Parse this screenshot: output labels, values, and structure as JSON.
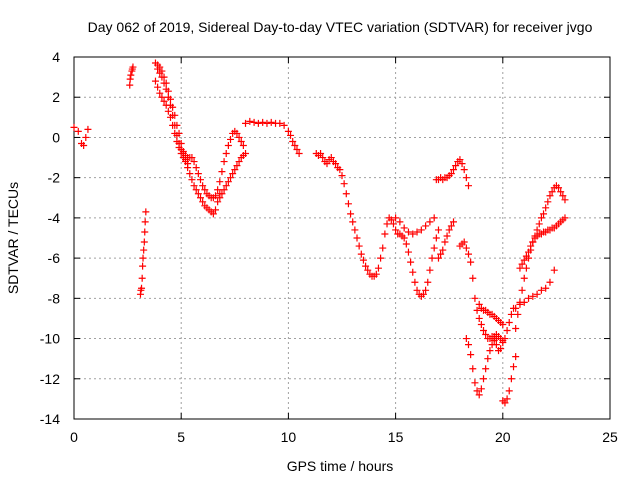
{
  "chart_data": {
    "type": "scatter",
    "title": "Day 062 of 2019, Sidereal Day-to-day VTEC variation (SDTVAR) for receiver jvgo",
    "xlabel": "GPS time / hours",
    "ylabel": "SDTVAR / TECUs",
    "xlim": [
      0,
      25
    ],
    "ylim": [
      -14,
      4
    ],
    "x_ticks": [
      0,
      5,
      10,
      15,
      20,
      25
    ],
    "y_ticks": [
      -14,
      -12,
      -10,
      -8,
      -6,
      -4,
      -2,
      0,
      2,
      4
    ],
    "x_tick_labels": [
      "0",
      "5",
      "10",
      "15",
      "20",
      "25"
    ],
    "y_tick_labels": [
      "-14",
      "-12",
      "-10",
      "-8",
      "-6",
      "-4",
      "-2",
      "0",
      "2",
      "4"
    ],
    "grid": true,
    "marker": "+",
    "color": "#ff0000",
    "series": [
      {
        "x": [
          0.0,
          0.2,
          0.35,
          0.45,
          0.55,
          0.65
        ],
        "y": [
          0.5,
          0.3,
          -0.3,
          -0.4,
          0.0,
          0.4
        ]
      },
      {
        "x": [
          2.6,
          2.62,
          2.65,
          2.7,
          2.72,
          2.75
        ],
        "y": [
          2.6,
          2.9,
          3.1,
          3.3,
          3.4,
          3.5
        ]
      },
      {
        "x": [
          3.1,
          3.12,
          3.15,
          3.18,
          3.2,
          3.22,
          3.25,
          3.28,
          3.3,
          3.32,
          3.35
        ],
        "y": [
          -7.8,
          -7.6,
          -7.5,
          -7.0,
          -6.4,
          -6.0,
          -5.6,
          -5.2,
          -4.7,
          -4.2,
          -3.7
        ]
      },
      {
        "x": [
          3.8,
          3.9,
          4.0,
          4.1,
          4.2,
          4.3,
          4.4,
          4.5,
          4.6,
          4.7,
          4.8,
          4.9,
          5.0,
          5.1,
          5.2,
          5.3,
          5.4,
          5.5,
          5.6,
          5.7,
          5.8,
          5.9,
          6.0,
          6.1,
          6.2,
          6.3,
          6.4,
          6.5,
          6.6,
          6.7,
          6.8
        ],
        "y": [
          3.7,
          3.6,
          3.5,
          3.3,
          3.0,
          2.7,
          2.3,
          1.9,
          1.5,
          1.1,
          0.6,
          0.2,
          -0.3,
          -0.7,
          -1.1,
          -1.5,
          -1.8,
          -2.1,
          -2.4,
          -2.6,
          -2.8,
          -3.0,
          -3.2,
          -3.4,
          -3.5,
          -3.6,
          -3.7,
          -3.8,
          -3.6,
          -3.2,
          -2.8
        ]
      },
      {
        "x": [
          3.9,
          4.0,
          4.1,
          4.2,
          4.3,
          4.4,
          4.5,
          4.6,
          4.7,
          4.8,
          4.9,
          5.0,
          5.1,
          5.2,
          5.3,
          5.4,
          5.5,
          5.6,
          5.7,
          5.8,
          5.9,
          6.0,
          6.1,
          6.2,
          6.3,
          6.4,
          6.5,
          6.6,
          6.7,
          6.8,
          6.9,
          7.0,
          7.1,
          7.2,
          7.3,
          7.4,
          7.5,
          7.6,
          7.7,
          7.8,
          7.9
        ],
        "y": [
          3.4,
          3.2,
          3.0,
          2.7,
          2.4,
          2.0,
          1.6,
          1.1,
          0.6,
          0.1,
          -0.3,
          -0.6,
          -0.8,
          -0.9,
          -1.0,
          -1.0,
          -1.0,
          -1.2,
          -1.5,
          -1.8,
          -2.1,
          -2.4,
          -2.6,
          -2.8,
          -2.9,
          -3.0,
          -3.0,
          -2.9,
          -2.6,
          -2.2,
          -1.7,
          -1.2,
          -0.8,
          -0.4,
          -0.1,
          0.2,
          0.3,
          0.2,
          0.0,
          -0.2,
          -0.4
        ]
      },
      {
        "x": [
          3.8,
          3.9,
          4.0,
          4.1,
          4.2,
          4.3,
          4.4,
          4.5,
          4.6,
          4.7,
          4.8,
          4.9,
          5.0,
          5.1,
          5.2,
          5.3
        ],
        "y": [
          2.8,
          2.5,
          2.2,
          2.0,
          1.8,
          1.6,
          1.3,
          1.0,
          0.6,
          0.2,
          -0.2,
          -0.5,
          -0.8,
          -1.0,
          -1.2,
          -1.3
        ]
      },
      {
        "x": [
          6.8,
          6.9,
          7.0,
          7.1,
          7.2,
          7.3,
          7.4,
          7.5,
          7.6,
          7.7,
          7.8,
          7.9,
          8.0
        ],
        "y": [
          -3.0,
          -2.8,
          -2.6,
          -2.4,
          -2.2,
          -2.0,
          -1.8,
          -1.6,
          -1.4,
          -1.2,
          -1.0,
          -0.9,
          -0.8
        ]
      },
      {
        "x": [
          8.0,
          8.2,
          8.4,
          8.6,
          8.8,
          9.0,
          9.2,
          9.4,
          9.6,
          9.8,
          10.0,
          10.1,
          10.2,
          10.3,
          10.4,
          10.5
        ],
        "y": [
          0.7,
          0.8,
          0.75,
          0.7,
          0.75,
          0.7,
          0.75,
          0.7,
          0.7,
          0.6,
          0.3,
          0.1,
          -0.2,
          -0.4,
          -0.6,
          -0.8
        ]
      },
      {
        "x": [
          11.3,
          11.4,
          11.5,
          11.6,
          11.7,
          11.8,
          11.9,
          12.0,
          12.1,
          12.2,
          12.3,
          12.4,
          12.5,
          12.6,
          12.7,
          12.8,
          12.9,
          13.0,
          13.1,
          13.2,
          13.3,
          13.4,
          13.5,
          13.6,
          13.7,
          13.8,
          13.9,
          14.0,
          14.1,
          14.2,
          14.3,
          14.4,
          14.5,
          14.6,
          14.7,
          14.8,
          14.9,
          15.0,
          15.1,
          15.2,
          15.3,
          15.4,
          15.5,
          15.6,
          15.7,
          15.8,
          15.9,
          16.0,
          16.1,
          16.2,
          16.3,
          16.4,
          16.5,
          16.6,
          16.7,
          16.8,
          16.9,
          17.0
        ],
        "y": [
          -0.8,
          -0.9,
          -0.8,
          -1.0,
          -1.2,
          -1.3,
          -1.1,
          -1.0,
          -1.2,
          -1.3,
          -1.5,
          -1.6,
          -1.9,
          -2.3,
          -2.8,
          -3.3,
          -3.8,
          -4.2,
          -4.6,
          -5.0,
          -5.4,
          -5.8,
          -6.1,
          -6.4,
          -6.6,
          -6.8,
          -6.9,
          -6.9,
          -6.8,
          -6.5,
          -6.0,
          -5.5,
          -4.8,
          -4.3,
          -4.0,
          -4.1,
          -4.3,
          -4.6,
          -4.8,
          -4.8,
          -4.9,
          -5.0,
          -5.3,
          -5.7,
          -6.2,
          -6.7,
          -7.2,
          -7.6,
          -7.8,
          -7.9,
          -7.8,
          -7.6,
          -7.2,
          -6.6,
          -6.0,
          -5.5,
          -5.0,
          -4.6
        ]
      },
      {
        "x": [
          15.0,
          15.2,
          15.4,
          15.6,
          15.8,
          16.0,
          16.2,
          16.4,
          16.6,
          16.8
        ],
        "y": [
          -4.0,
          -4.2,
          -4.5,
          -4.7,
          -4.8,
          -4.7,
          -4.6,
          -4.4,
          -4.2,
          -4.0
        ]
      },
      {
        "x": [
          16.9,
          17.0,
          17.1,
          17.2,
          17.3,
          17.4,
          17.5,
          17.6,
          17.7,
          17.8,
          17.9,
          18.0,
          18.1,
          18.2,
          18.3,
          18.4
        ],
        "y": [
          -2.1,
          -2.1,
          -2.0,
          -2.1,
          -2.0,
          -2.0,
          -1.9,
          -1.8,
          -1.6,
          -1.4,
          -1.2,
          -1.1,
          -1.3,
          -1.6,
          -2.0,
          -2.4
        ]
      },
      {
        "x": [
          17.0,
          17.1,
          17.2,
          17.3,
          17.4,
          17.5,
          17.6,
          17.7
        ],
        "y": [
          -6.0,
          -5.8,
          -5.6,
          -5.2,
          -4.9,
          -4.6,
          -4.4,
          -4.2
        ]
      },
      {
        "x": [
          18.0,
          18.1,
          18.2,
          18.3,
          18.4,
          18.5,
          18.6,
          18.7,
          18.8,
          18.9,
          19.0,
          19.1,
          19.2,
          19.3,
          19.4,
          19.5,
          19.6,
          19.7,
          19.8,
          19.9,
          20.0
        ],
        "y": [
          -5.4,
          -5.3,
          -5.2,
          -5.5,
          -5.8,
          -6.2,
          -7.0,
          -8.0,
          -8.6,
          -9.0,
          -9.3,
          -9.6,
          -9.8,
          -10.0,
          -10.0,
          -9.9,
          -9.9,
          -9.8,
          -9.9,
          -10.0,
          -10.1
        ]
      },
      {
        "x": [
          18.3,
          18.4,
          18.5,
          18.6,
          18.7,
          18.8,
          18.9,
          19.0,
          19.1,
          19.2,
          19.3,
          19.4,
          19.5,
          19.6,
          19.7
        ],
        "y": [
          -10.0,
          -10.3,
          -10.8,
          -11.5,
          -12.2,
          -12.6,
          -12.8,
          -12.5,
          -12.0,
          -11.5,
          -11.0,
          -10.6,
          -10.3,
          -10.1,
          -10.0
        ]
      },
      {
        "x": [
          18.9,
          19.0,
          19.1,
          19.2,
          19.3,
          19.4,
          19.5,
          19.6,
          19.7,
          19.8,
          19.9,
          20.0
        ],
        "y": [
          -8.3,
          -8.5,
          -8.6,
          -8.6,
          -8.7,
          -8.8,
          -8.8,
          -8.9,
          -9.0,
          -9.1,
          -9.2,
          -9.3
        ]
      },
      {
        "x": [
          19.6,
          19.7,
          19.8,
          19.9,
          20.0,
          20.1,
          20.2,
          20.3,
          20.4,
          20.5
        ],
        "y": [
          -10.0,
          -10.3,
          -10.6,
          -10.5,
          -10.2,
          -10.0,
          -9.6,
          -9.2,
          -8.8,
          -8.5
        ]
      },
      {
        "x": [
          20.0,
          20.1,
          20.2,
          20.3,
          20.4,
          20.5,
          20.6
        ],
        "y": [
          -13.1,
          -13.2,
          -13.0,
          -12.6,
          -12.0,
          -11.4,
          -10.9
        ]
      },
      {
        "x": [
          20.6,
          20.7,
          20.8,
          20.9,
          21.0,
          21.1,
          21.2,
          21.3,
          21.4,
          21.5,
          21.6,
          21.7,
          21.8,
          21.9,
          22.0,
          22.1,
          22.2,
          22.3,
          22.4,
          22.5,
          22.6,
          22.7,
          22.8,
          22.9
        ],
        "y": [
          -9.5,
          -8.8,
          -8.2,
          -7.6,
          -7.0,
          -6.5,
          -6.0,
          -5.6,
          -5.2,
          -4.9,
          -4.6,
          -4.3,
          -4.0,
          -3.8,
          -3.5,
          -3.2,
          -2.9,
          -2.7,
          -2.5,
          -2.4,
          -2.5,
          -2.7,
          -2.9,
          -3.1
        ]
      },
      {
        "x": [
          20.8,
          20.9,
          21.0,
          21.1,
          21.2,
          21.3,
          21.4,
          21.5,
          21.6,
          21.7,
          21.8,
          21.9,
          22.0,
          22.1,
          22.2,
          22.3,
          22.4,
          22.5,
          22.6,
          22.7,
          22.8,
          22.9
        ],
        "y": [
          -6.5,
          -6.3,
          -6.1,
          -5.9,
          -5.7,
          -5.4,
          -5.2,
          -5.0,
          -4.9,
          -4.8,
          -4.8,
          -4.7,
          -4.7,
          -4.6,
          -4.6,
          -4.5,
          -4.5,
          -4.4,
          -4.3,
          -4.2,
          -4.1,
          -4.0
        ]
      },
      {
        "x": [
          20.6,
          20.8,
          21.0,
          21.2,
          21.4,
          21.6,
          21.8,
          22.0,
          22.2,
          22.4
        ],
        "y": [
          -8.5,
          -8.3,
          -8.2,
          -8.0,
          -7.9,
          -7.8,
          -7.6,
          -7.5,
          -7.2,
          -6.6
        ]
      }
    ]
  }
}
